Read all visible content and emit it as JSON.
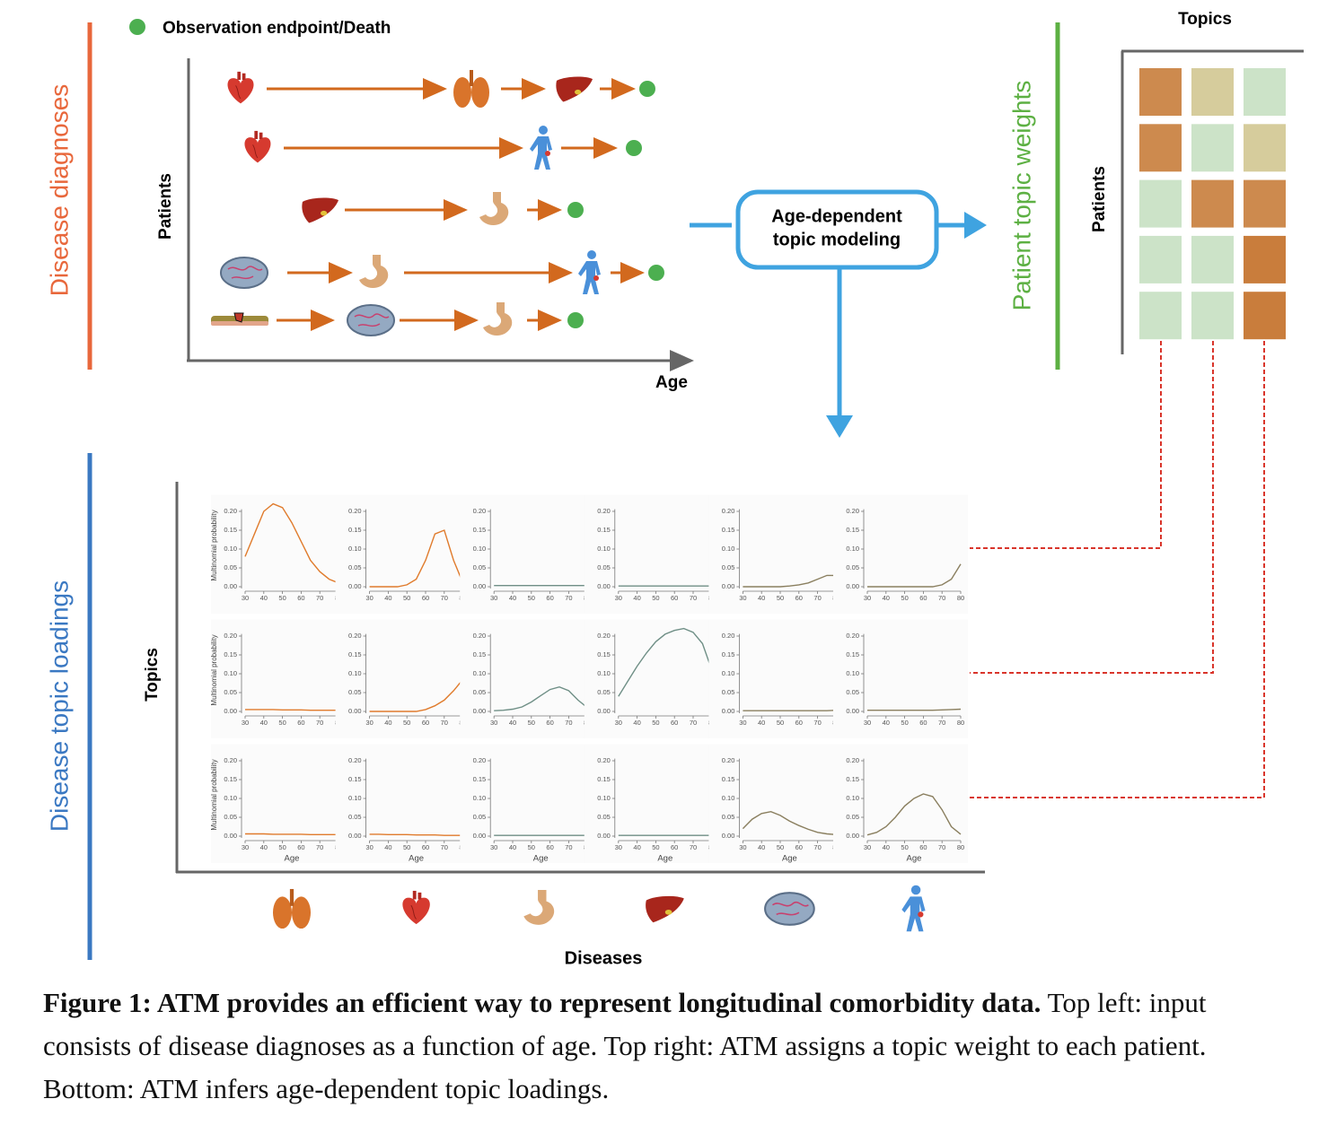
{
  "legend": {
    "label": "Observation endpoint/Death"
  },
  "diagnoses": {
    "title": "Disease diagnoses",
    "y_label": "Patients",
    "x_label": "Age"
  },
  "model": {
    "label_line1": "Age-dependent",
    "label_line2": "topic modeling"
  },
  "weights": {
    "title": "Patient topic weights",
    "x_label": "Topics",
    "y_label": "Patients",
    "colors": [
      [
        "#cd8a4e",
        "#d6cc9c",
        "#cce3c8"
      ],
      [
        "#cd8a4e",
        "#cce3c8",
        "#d6cc9c"
      ],
      [
        "#cce3c8",
        "#cd8a4e",
        "#cd8a4e"
      ],
      [
        "#cce3c8",
        "#cce3c8",
        "#c97d3c"
      ],
      [
        "#cce3c8",
        "#cce3c8",
        "#c97d3c"
      ]
    ]
  },
  "loadings": {
    "title": "Disease topic loadings",
    "y_label": "Topics",
    "x_label": "Diseases",
    "panel_y_label": "Multinomial probability",
    "panel_x_label": "Age",
    "x": [
      30,
      35,
      40,
      45,
      50,
      55,
      60,
      65,
      70,
      75,
      80
    ],
    "xlim": [
      30,
      80
    ],
    "ylim": [
      0,
      0.22
    ],
    "xticks": [
      30,
      40,
      50,
      60,
      70,
      80
    ],
    "yticks": [
      {
        "value": 0,
        "label": "0.00"
      },
      {
        "value": 0.05,
        "label": "0.05"
      },
      {
        "value": 0.1,
        "label": "0.10"
      },
      {
        "value": 0.15,
        "label": "0.15"
      },
      {
        "value": 0.2,
        "label": "0.20"
      }
    ],
    "panels": [
      [
        {
          "color": "#e07b2c",
          "values": [
            0.08,
            0.14,
            0.2,
            0.22,
            0.21,
            0.17,
            0.12,
            0.07,
            0.04,
            0.02,
            0.01
          ]
        },
        {
          "color": "#e07b2c",
          "values": [
            0,
            0,
            0,
            0,
            0.005,
            0.02,
            0.07,
            0.14,
            0.15,
            0.07,
            0.01
          ]
        },
        {
          "color": "#6f8f86",
          "values": [
            0.003,
            0.003,
            0.003,
            0.003,
            0.003,
            0.003,
            0.003,
            0.003,
            0.003,
            0.003,
            0.003
          ]
        },
        {
          "color": "#6f8f86",
          "values": [
            0.002,
            0.002,
            0.002,
            0.002,
            0.002,
            0.002,
            0.002,
            0.002,
            0.002,
            0.002,
            0.002
          ]
        },
        {
          "color": "#8a7f5f",
          "values": [
            0,
            0,
            0,
            0,
            0,
            0.002,
            0.005,
            0.01,
            0.02,
            0.03,
            0.03
          ]
        },
        {
          "color": "#8a7f5f",
          "values": [
            0,
            0,
            0,
            0,
            0,
            0,
            0,
            0,
            0.005,
            0.02,
            0.06
          ]
        }
      ],
      [
        {
          "color": "#e07b2c",
          "values": [
            0.005,
            0.005,
            0.005,
            0.005,
            0.004,
            0.004,
            0.004,
            0.003,
            0.003,
            0.003,
            0.003
          ]
        },
        {
          "color": "#e07b2c",
          "values": [
            0,
            0,
            0,
            0,
            0,
            0,
            0.005,
            0.015,
            0.03,
            0.055,
            0.085
          ]
        },
        {
          "color": "#6f8f86",
          "values": [
            0.002,
            0.003,
            0.006,
            0.012,
            0.025,
            0.042,
            0.058,
            0.065,
            0.055,
            0.03,
            0.01
          ]
        },
        {
          "color": "#6f8f86",
          "values": [
            0.04,
            0.08,
            0.12,
            0.155,
            0.185,
            0.205,
            0.215,
            0.22,
            0.21,
            0.18,
            0.11
          ]
        },
        {
          "color": "#8a7f5f",
          "values": [
            0.002,
            0.002,
            0.002,
            0.002,
            0.002,
            0.002,
            0.002,
            0.002,
            0.002,
            0.002,
            0.003
          ]
        },
        {
          "color": "#8a7f5f",
          "values": [
            0.003,
            0.003,
            0.003,
            0.003,
            0.003,
            0.003,
            0.003,
            0.003,
            0.004,
            0.005,
            0.006
          ]
        }
      ],
      [
        {
          "color": "#e07b2c",
          "values": [
            0.006,
            0.006,
            0.006,
            0.005,
            0.005,
            0.005,
            0.005,
            0.004,
            0.004,
            0.004,
            0.004
          ]
        },
        {
          "color": "#e07b2c",
          "values": [
            0.005,
            0.005,
            0.004,
            0.004,
            0.004,
            0.003,
            0.003,
            0.003,
            0.002,
            0.002,
            0.002
          ]
        },
        {
          "color": "#6f8f86",
          "values": [
            0.002,
            0.002,
            0.002,
            0.002,
            0.002,
            0.002,
            0.002,
            0.002,
            0.002,
            0.002,
            0.002
          ]
        },
        {
          "color": "#6f8f86",
          "values": [
            0.002,
            0.002,
            0.002,
            0.002,
            0.002,
            0.002,
            0.002,
            0.002,
            0.002,
            0.002,
            0.002
          ]
        },
        {
          "color": "#8a7f5f",
          "values": [
            0.02,
            0.045,
            0.06,
            0.065,
            0.055,
            0.04,
            0.028,
            0.018,
            0.01,
            0.006,
            0.004
          ]
        },
        {
          "color": "#8a7f5f",
          "values": [
            0.003,
            0.01,
            0.025,
            0.05,
            0.08,
            0.1,
            0.112,
            0.105,
            0.07,
            0.025,
            0.005
          ]
        }
      ]
    ]
  },
  "caption": {
    "bold": "Figure 1: ATM provides an efficient way to represent longitudinal comorbidity data.",
    "text": " Top left: input consists of disease diagnoses as a function of age. Top right: ATM assigns a topic weight to each patient. Bottom: ATM infers age-dependent topic loadings."
  }
}
